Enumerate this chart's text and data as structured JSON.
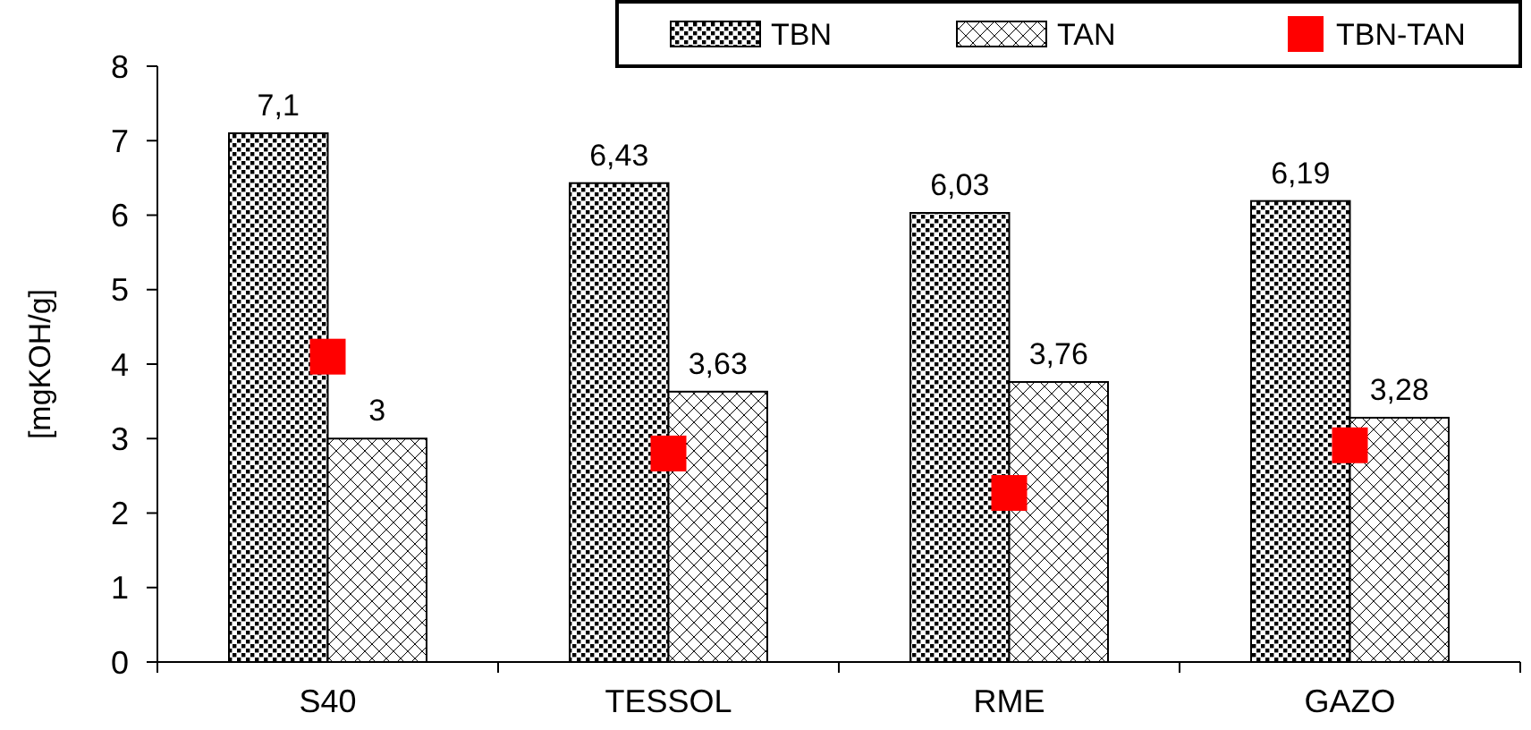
{
  "chart_data": {
    "type": "bar",
    "ylabel": "[mgKOH/g]",
    "categories": [
      "S40",
      "TESSOL",
      "RME",
      "GAZO"
    ],
    "series": [
      {
        "name": "TBN",
        "color": "#000000",
        "values": [
          7.1,
          6.43,
          6.03,
          6.19
        ],
        "value_labels": [
          "7,1",
          "6,43",
          "6,03",
          "6,19"
        ]
      },
      {
        "name": "TAN",
        "color": "#000000",
        "values": [
          3,
          3.63,
          3.76,
          3.28
        ],
        "value_labels": [
          "3",
          "3,63",
          "3,76",
          "3,28"
        ]
      },
      {
        "name": "TBN-TAN",
        "type": "scatter",
        "color": "#ff0000",
        "x": [
          "S40",
          "TESSOL",
          "RME",
          "GAZO"
        ],
        "values": [
          4.1,
          2.8,
          2.27,
          2.91
        ]
      }
    ],
    "ylim": [
      0,
      8
    ],
    "yticks": [
      0,
      1,
      2,
      3,
      4,
      5,
      6,
      7,
      8
    ],
    "grid": false,
    "legend": "top right",
    "marker": "square"
  }
}
